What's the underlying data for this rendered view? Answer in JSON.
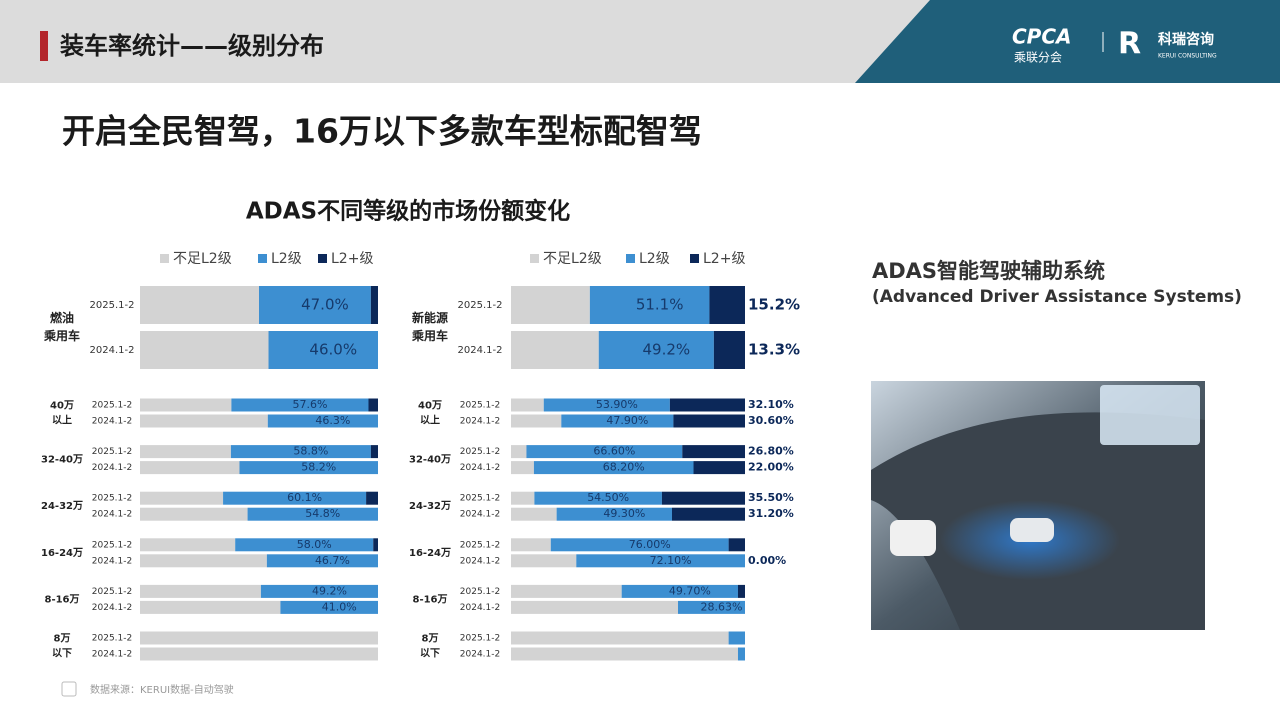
{
  "header": {
    "title": "装车率统计——级别分布",
    "logo_main": "CPCA",
    "logo_sub": "乘联分会",
    "logo_brand": "科瑞咨询",
    "logo_brand_sub": "KERUI CONSULTING"
  },
  "headline": "开启全民智驾，16万以下多款车型标配智驾",
  "section_title": "ADAS不同等级的市场份额变化",
  "side": {
    "title": "ADAS智能驾驶辅助系统",
    "subtitle": "(Advanced Driver Assistance Systems)"
  },
  "source": "数据来源：KERUI数据-自动驾驶",
  "chart_data": [
    {
      "type": "bar",
      "stacked": true,
      "orientation": "horizontal",
      "xlim": [
        0,
        100
      ],
      "groups": [
        [
          "燃油",
          "乘用车"
        ],
        [
          "40万",
          "以上"
        ],
        [
          "32-40万"
        ],
        [
          "24-32万"
        ],
        [
          "16-24万"
        ],
        [
          "8-16万"
        ],
        [
          "8万",
          "以下"
        ]
      ],
      "categories": [
        "2025.1-2",
        "2024.1-2",
        "2025.1-2",
        "2024.1-2",
        "2025.1-2",
        "2024.1-2",
        "2025.1-2",
        "2024.1-2",
        "2025.1-2",
        "2024.1-2",
        "2025.1-2",
        "2024.1-2",
        "2025.1-2",
        "2024.1-2"
      ],
      "series": [
        {
          "name": "不足L2级",
          "color": "#d3d3d3",
          "values": [
            50,
            54,
            38.4,
            53.7,
            38.2,
            41.8,
            34.9,
            45.2,
            40,
            53.3,
            50.8,
            59,
            100,
            100
          ]
        },
        {
          "name": "L2级",
          "color": "#3d8fd1",
          "values": [
            47,
            46,
            57.6,
            46.3,
            58.8,
            58.2,
            60.1,
            54.8,
            58,
            46.7,
            49.2,
            41,
            0,
            0
          ],
          "value_labels": [
            "47.0%",
            "46.0%",
            "57.6%",
            "46.3%",
            "58.8%",
            "58.2%",
            "60.1%",
            "54.8%",
            "58.0%",
            "46.7%",
            "49.2%",
            "41.0%",
            null,
            null
          ]
        },
        {
          "name": "L2+级",
          "color": "#0c2859",
          "values": [
            3,
            0,
            4,
            0,
            3,
            0,
            5,
            0,
            2,
            0,
            0,
            0,
            0,
            0
          ]
        }
      ]
    },
    {
      "type": "bar",
      "stacked": true,
      "orientation": "horizontal",
      "xlim": [
        0,
        100
      ],
      "groups": [
        [
          "新能源",
          "乘用车"
        ],
        [
          "40万",
          "以上"
        ],
        [
          "32-40万"
        ],
        [
          "24-32万"
        ],
        [
          "16-24万"
        ],
        [
          "8-16万"
        ],
        [
          "8万",
          "以下"
        ]
      ],
      "categories": [
        "2025.1-2",
        "2024.1-2",
        "2025.1-2",
        "2024.1-2",
        "2025.1-2",
        "2024.1-2",
        "2025.1-2",
        "2024.1-2",
        "2025.1-2",
        "2024.1-2",
        "2025.1-2",
        "2024.1-2",
        "2025.1-2",
        "2024.1-2"
      ],
      "series": [
        {
          "name": "不足L2级",
          "color": "#d3d3d3",
          "values": [
            33.7,
            37.5,
            14,
            21.5,
            6.6,
            9.8,
            10,
            19.5,
            17,
            27.9,
            47.3,
            71.37,
            93,
            97
          ]
        },
        {
          "name": "L2级",
          "color": "#3d8fd1",
          "values": [
            51.1,
            49.2,
            53.9,
            47.9,
            66.6,
            68.2,
            54.5,
            49.3,
            76,
            72.1,
            49.7,
            28.63,
            7,
            3
          ],
          "value_labels": [
            "51.1%",
            "49.2%",
            "53.90%",
            "47.90%",
            "66.60%",
            "68.20%",
            "54.50%",
            "49.30%",
            "76.00%",
            "72.10%",
            "49.70%",
            "28.63%",
            null,
            null
          ]
        },
        {
          "name": "L2+级",
          "color": "#0c2859",
          "values": [
            15.2,
            13.3,
            32.1,
            30.6,
            26.8,
            22,
            35.5,
            31.2,
            7,
            0,
            3,
            0,
            0,
            0
          ],
          "value_labels": [
            "15.2%",
            "13.3%",
            "32.10%",
            "30.60%",
            "26.80%",
            "22.00%",
            "35.50%",
            "31.20%",
            null,
            "0.00%",
            null,
            null,
            null,
            null
          ]
        }
      ]
    }
  ]
}
